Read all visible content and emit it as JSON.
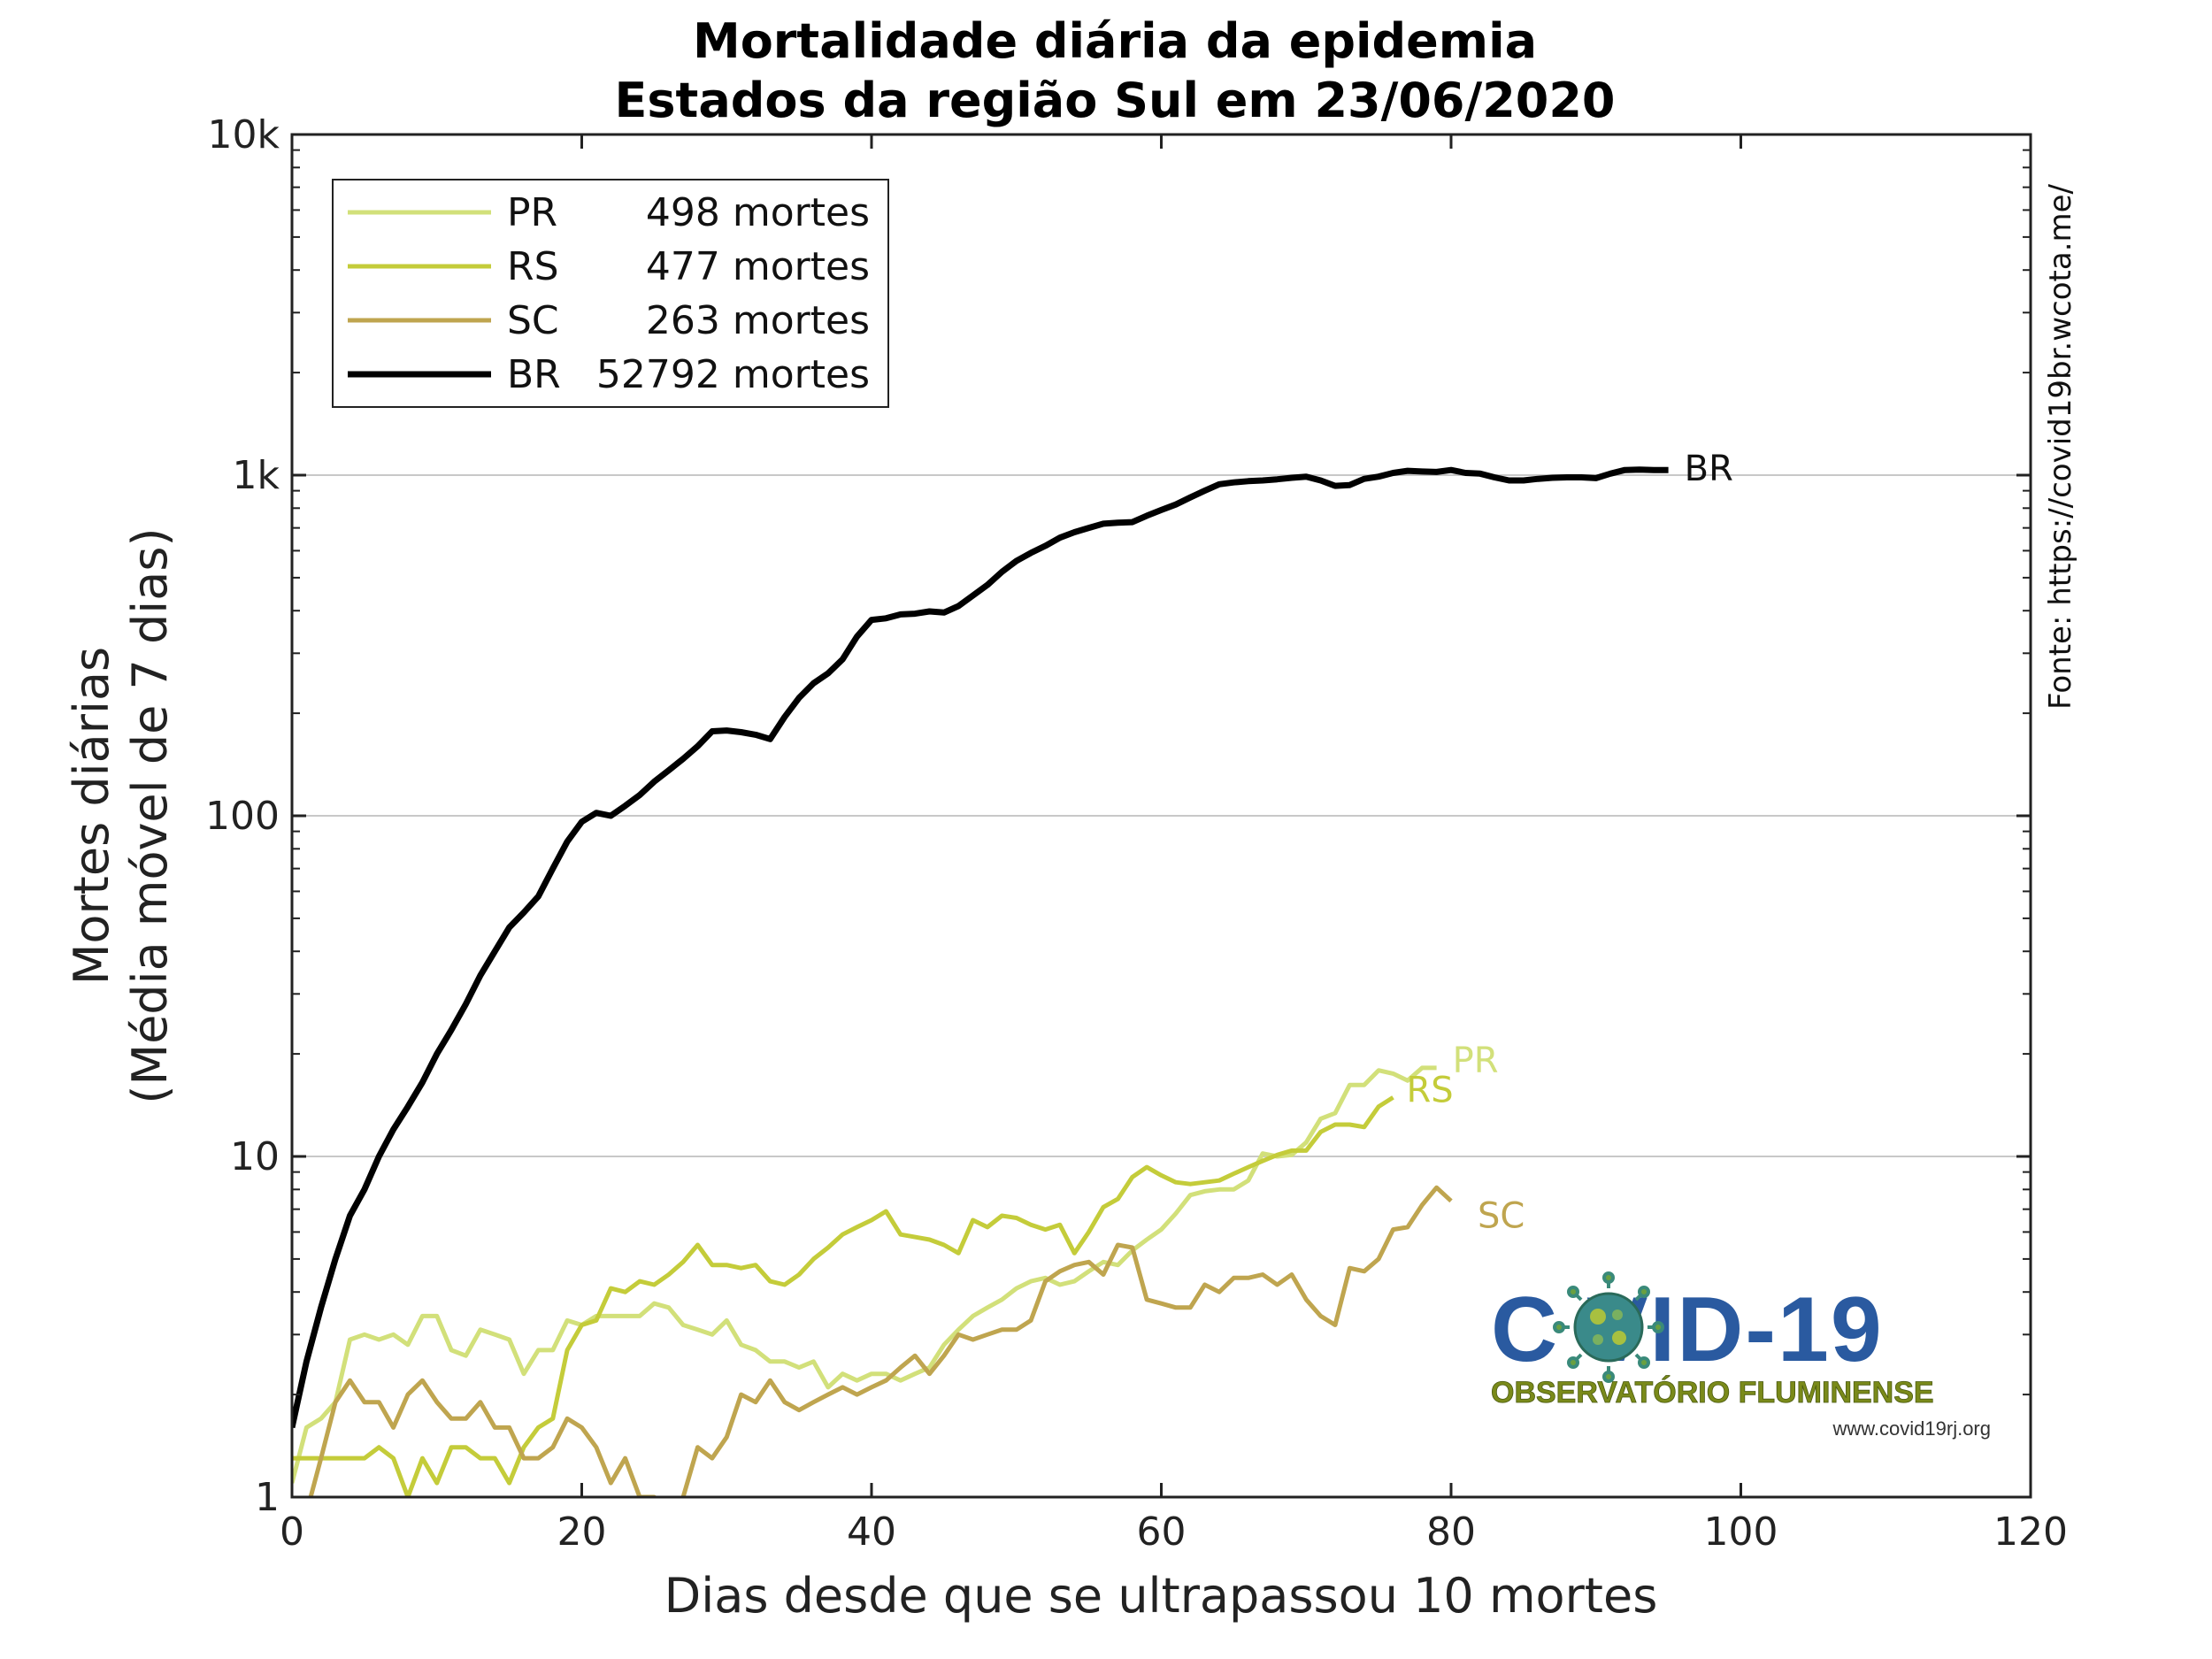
{
  "chart_data": {
    "type": "line",
    "title_lines": [
      "Mortalidade diária da epidemia",
      "Estados da região Sul em 23/06/2020"
    ],
    "xlabel": "Dias desde que se ultrapassou 10 mortes",
    "ylabel_lines": [
      "Mortes diárias",
      "(Média móvel de 7 dias)"
    ],
    "xlim": [
      0,
      120
    ],
    "ylim": [
      1,
      10000
    ],
    "yscale": "log",
    "x_ticks": [
      0,
      20,
      40,
      60,
      80,
      100,
      120
    ],
    "x_tick_labels": [
      "0",
      "20",
      "40",
      "60",
      "80",
      "100",
      "120"
    ],
    "y_ticks": [
      1,
      10,
      100,
      1000,
      10000
    ],
    "y_tick_labels": [
      "1",
      "10",
      "100",
      "1k",
      "10k"
    ],
    "grid": "horizontal major",
    "legend_position": "top-left",
    "series": [
      {
        "name": "PR",
        "color": "#d2e07a",
        "legend_text": "498 mortes",
        "end_label": "PR",
        "x": [
          0,
          1,
          2,
          3,
          4,
          5,
          6,
          7,
          8,
          9,
          10,
          11,
          12,
          13,
          14,
          15,
          16,
          17,
          18,
          19,
          20,
          21,
          22,
          23,
          24,
          25,
          26,
          27,
          28,
          29,
          30,
          31,
          32,
          33,
          34,
          35,
          36,
          37,
          38,
          39,
          40,
          41,
          42,
          43,
          44,
          45,
          46,
          47,
          48,
          49,
          50,
          51,
          52,
          53,
          54,
          55,
          56,
          57,
          58,
          59,
          60,
          61,
          62,
          63,
          64,
          65,
          66,
          67,
          68,
          69,
          70,
          71,
          72,
          73,
          74,
          75,
          76,
          77,
          78,
          79
        ],
        "y": [
          1.1,
          1.6,
          1.7,
          1.9,
          2.9,
          3.0,
          2.9,
          3.0,
          2.8,
          3.4,
          3.4,
          2.7,
          2.6,
          3.1,
          3.0,
          2.9,
          2.3,
          2.7,
          2.7,
          3.3,
          3.2,
          3.4,
          3.4,
          3.4,
          3.4,
          3.7,
          3.6,
          3.2,
          3.1,
          3.0,
          3.3,
          2.8,
          2.7,
          2.5,
          2.5,
          2.4,
          2.5,
          2.1,
          2.3,
          2.2,
          2.3,
          2.3,
          2.2,
          2.3,
          2.4,
          2.8,
          3.1,
          3.4,
          3.6,
          3.8,
          4.1,
          4.3,
          4.4,
          4.2,
          4.3,
          4.6,
          4.9,
          4.8,
          5.3,
          5.7,
          6.1,
          6.8,
          7.7,
          7.9,
          8.0,
          8.0,
          8.5,
          10.2,
          10.0,
          10.1,
          11.0,
          12.9,
          13.4,
          16.2,
          16.2,
          17.9,
          17.5,
          16.7,
          18.2,
          18.2
        ]
      },
      {
        "name": "RS",
        "color": "#c4cc3a",
        "legend_text": "477 mortes",
        "end_label": "RS",
        "x": [
          0,
          1,
          2,
          3,
          4,
          5,
          6,
          7,
          8,
          9,
          10,
          11,
          12,
          13,
          14,
          15,
          16,
          17,
          18,
          19,
          20,
          21,
          22,
          23,
          24,
          25,
          26,
          27,
          28,
          29,
          30,
          31,
          32,
          33,
          34,
          35,
          36,
          37,
          38,
          39,
          40,
          41,
          42,
          43,
          44,
          45,
          46,
          47,
          48,
          49,
          50,
          51,
          52,
          53,
          54,
          55,
          56,
          57,
          58,
          59,
          60,
          61,
          62,
          63,
          64,
          65,
          66,
          67,
          68,
          69,
          70,
          71,
          72,
          73,
          74,
          75,
          76
        ],
        "y": [
          1.3,
          1.3,
          1.3,
          1.3,
          1.3,
          1.3,
          1.4,
          1.3,
          1.0,
          1.3,
          1.1,
          1.4,
          1.4,
          1.3,
          1.3,
          1.1,
          1.4,
          1.6,
          1.7,
          2.7,
          3.2,
          3.3,
          4.1,
          4.0,
          4.3,
          4.2,
          4.5,
          4.9,
          5.5,
          4.8,
          4.8,
          4.7,
          4.8,
          4.3,
          4.2,
          4.5,
          5.0,
          5.4,
          5.9,
          6.2,
          6.5,
          6.9,
          5.9,
          5.8,
          5.7,
          5.5,
          5.2,
          6.5,
          6.2,
          6.7,
          6.6,
          6.3,
          6.1,
          6.3,
          5.2,
          6.0,
          7.1,
          7.5,
          8.7,
          9.3,
          8.8,
          8.4,
          8.3,
          8.4,
          8.5,
          8.9,
          9.3,
          9.7,
          10.1,
          10.4,
          10.4,
          11.8,
          12.4,
          12.4,
          12.2,
          14.0,
          14.9
        ]
      },
      {
        "name": "SC",
        "color": "#bfa54f",
        "legend_text": "263 mortes",
        "end_label": "SC",
        "x": [
          0,
          1,
          2,
          3,
          4,
          5,
          6,
          7,
          8,
          9,
          10,
          11,
          12,
          13,
          14,
          15,
          16,
          17,
          18,
          19,
          20,
          21,
          22,
          23,
          24,
          25,
          26,
          27,
          28,
          29,
          30,
          31,
          32,
          33,
          34,
          35,
          36,
          37,
          38,
          39,
          40,
          41,
          42,
          43,
          44,
          45,
          46,
          47,
          48,
          49,
          50,
          51,
          52,
          53,
          54,
          55,
          56,
          57,
          58,
          59,
          60,
          61,
          62,
          63,
          64,
          65,
          66,
          67,
          68,
          69,
          70,
          71,
          72,
          73,
          74,
          75,
          76,
          77,
          78,
          79,
          80
        ],
        "y": [
          0.9,
          0.9,
          1.3,
          1.9,
          2.2,
          1.9,
          1.9,
          1.6,
          2.0,
          2.2,
          1.9,
          1.7,
          1.7,
          1.9,
          1.6,
          1.6,
          1.3,
          1.3,
          1.4,
          1.7,
          1.6,
          1.4,
          1.1,
          1.3,
          1.0,
          1.0,
          0.9,
          1.0,
          1.4,
          1.3,
          1.5,
          2.0,
          1.9,
          2.2,
          1.9,
          1.8,
          1.9,
          2.0,
          2.1,
          2.0,
          2.1,
          2.2,
          2.4,
          2.6,
          2.3,
          2.6,
          3.0,
          2.9,
          3.0,
          3.1,
          3.1,
          3.3,
          4.3,
          4.6,
          4.8,
          4.9,
          4.5,
          5.5,
          5.4,
          3.8,
          3.7,
          3.6,
          3.6,
          4.2,
          4.0,
          4.4,
          4.4,
          4.5,
          4.2,
          4.5,
          3.8,
          3.4,
          3.2,
          4.7,
          4.6,
          5.0,
          6.1,
          6.2,
          7.2,
          8.1,
          7.4
        ]
      },
      {
        "name": "BR",
        "color": "#000000",
        "legend_text": "52792 mortes",
        "end_label": "BR",
        "x": [
          0,
          1,
          2,
          3,
          4,
          5,
          6,
          7,
          8,
          9,
          10,
          11,
          12,
          13,
          14,
          15,
          16,
          17,
          18,
          19,
          20,
          21,
          22,
          23,
          24,
          25,
          26,
          27,
          28,
          29,
          30,
          31,
          32,
          33,
          34,
          35,
          36,
          37,
          38,
          39,
          40,
          41,
          42,
          43,
          44,
          45,
          46,
          47,
          48,
          49,
          50,
          51,
          52,
          53,
          54,
          55,
          56,
          57,
          58,
          59,
          60,
          61,
          62,
          63,
          64,
          65,
          66,
          67,
          68,
          69,
          70,
          71,
          72,
          73,
          74,
          75,
          76,
          77,
          78,
          79,
          80,
          81,
          82,
          83,
          84,
          85,
          86,
          87,
          88,
          89,
          90,
          91,
          92,
          93,
          94,
          95
        ],
        "y": [
          1.6,
          2.5,
          3.6,
          5.0,
          6.7,
          8.0,
          10.0,
          12.0,
          14.0,
          16.5,
          20.0,
          23.5,
          28.0,
          34.0,
          40.0,
          47.0,
          52.0,
          58.0,
          70.0,
          84.0,
          96.0,
          102.0,
          100.0,
          107.0,
          115.0,
          126.0,
          136.0,
          147.0,
          160.0,
          177.0,
          178.0,
          176.0,
          173.0,
          168.0,
          195.0,
          222.0,
          245.0,
          262.0,
          288.0,
          336.0,
          376.0,
          380.0,
          390.0,
          392.0,
          398.0,
          395.0,
          413.0,
          443.0,
          476.0,
          520.0,
          560.0,
          591.0,
          620.0,
          655.0,
          680.0,
          700.0,
          720.0,
          725.0,
          728.0,
          760.0,
          790.0,
          820.0,
          860.0,
          900.0,
          940.0,
          952.0,
          960.0,
          965.0,
          972.0,
          982.0,
          990.0,
          965.0,
          930.0,
          935.0,
          975.0,
          990.0,
          1015.0,
          1030.0,
          1025.0,
          1022.0,
          1035.0,
          1015.0,
          1010.0,
          985.0,
          965.0,
          965.0,
          975.0,
          982.0,
          985.0,
          985.0,
          980.0,
          1010.0,
          1035.0,
          1038.0,
          1035.0,
          1035.0
        ]
      }
    ]
  },
  "source_text": "Fonte: https://covid19br.wcota.me/",
  "logo": {
    "main_text": "C VID-19",
    "subtitle": "OBSERVATÓRIO FLUMINENSE",
    "url": "www.covid19rj.org"
  }
}
